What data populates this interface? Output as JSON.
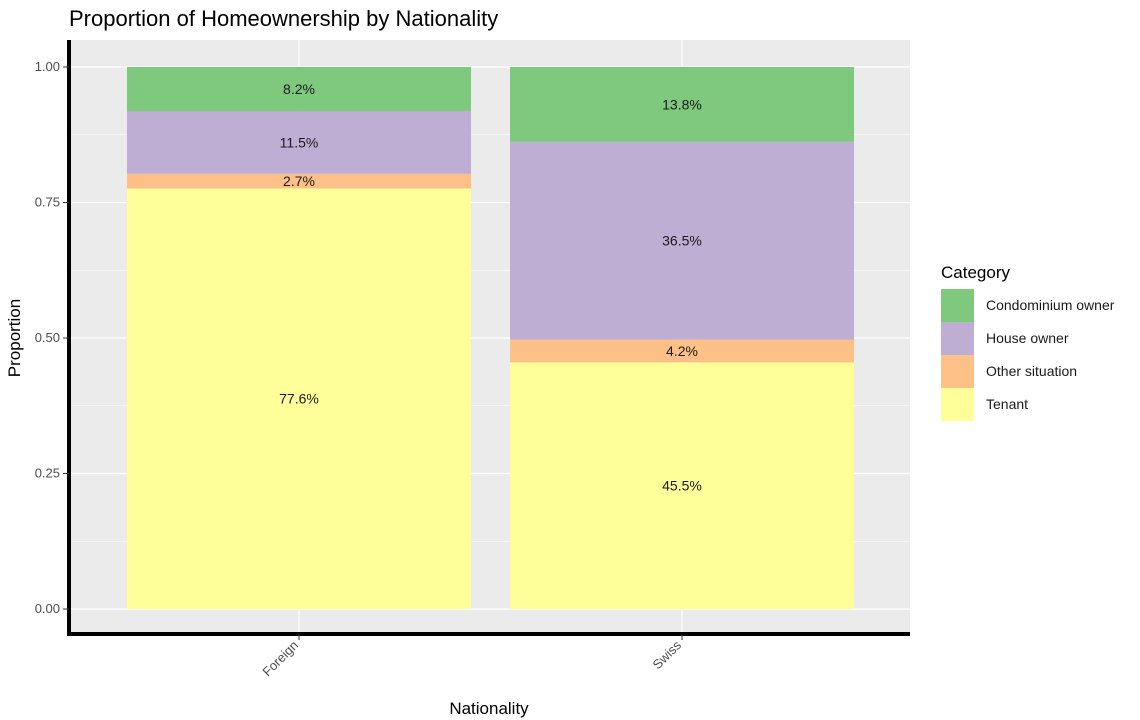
{
  "chart_data": {
    "type": "bar",
    "stacked": true,
    "title": "Proportion of Homeownership by Nationality",
    "xlabel": "Nationality",
    "ylabel": "Proportion",
    "categories": [
      "Foreign",
      "Swiss"
    ],
    "ylim": [
      0,
      1
    ],
    "yticks": [
      "0.00",
      "0.25",
      "0.50",
      "0.75",
      "1.00"
    ],
    "legend_title": "Category",
    "legend_position": "right",
    "series": [
      {
        "name": "Tenant",
        "color": "#ffff99",
        "values": [
          0.776,
          0.455
        ],
        "labels": [
          "77.6%",
          "45.5%"
        ]
      },
      {
        "name": "Other situation",
        "color": "#fdc086",
        "values": [
          0.027,
          0.042
        ],
        "labels": [
          "2.7%",
          "4.2%"
        ]
      },
      {
        "name": "House owner",
        "color": "#beaed4",
        "values": [
          0.115,
          0.365
        ],
        "labels": [
          "11.5%",
          "36.5%"
        ]
      },
      {
        "name": "Condominium owner",
        "color": "#7fc97f",
        "values": [
          0.082,
          0.138
        ],
        "labels": [
          "8.2%",
          "13.8%"
        ]
      }
    ],
    "legend_order": [
      "Condominium owner",
      "House owner",
      "Other situation",
      "Tenant"
    ],
    "grid": true
  }
}
